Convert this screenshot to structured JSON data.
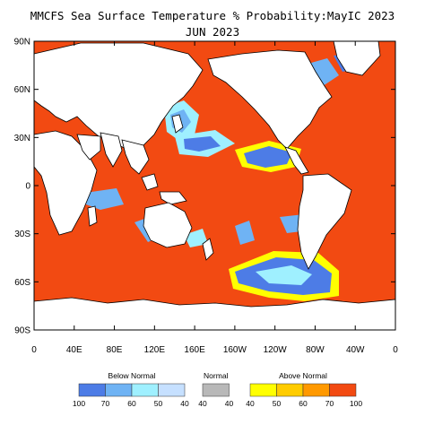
{
  "header": {
    "title": "MMCFS Sea Surface Temperature % Probability:MayIC 2023",
    "subtitle": "JUN 2023"
  },
  "map": {
    "lat_ticks": [
      "90N",
      "60N",
      "30N",
      "0",
      "30S",
      "60S",
      "90S"
    ],
    "lon_ticks": [
      "0",
      "40E",
      "80E",
      "120E",
      "160E",
      "160W",
      "120W",
      "80W",
      "40W",
      "0"
    ],
    "colors": {
      "ocean_above": "#f24a12",
      "land": "#ffffff",
      "coast": "#000000"
    }
  },
  "legend": {
    "groups": [
      {
        "label": "Below Normal",
        "swatches": [
          "#4d7ce6",
          "#6fb3f4",
          "#9ff0ff",
          "#c6e0ff"
        ],
        "ticks": [
          "100",
          "70",
          "60",
          "50",
          "40"
        ]
      },
      {
        "label": "Normal",
        "swatches": [
          "#b8b8b8"
        ],
        "ticks": [
          "40",
          "40"
        ]
      },
      {
        "label": "Above Normal",
        "swatches": [
          "#ffff00",
          "#ffcc00",
          "#ff9900",
          "#f24a12"
        ],
        "ticks": [
          "40",
          "50",
          "60",
          "70",
          "100"
        ]
      }
    ]
  }
}
